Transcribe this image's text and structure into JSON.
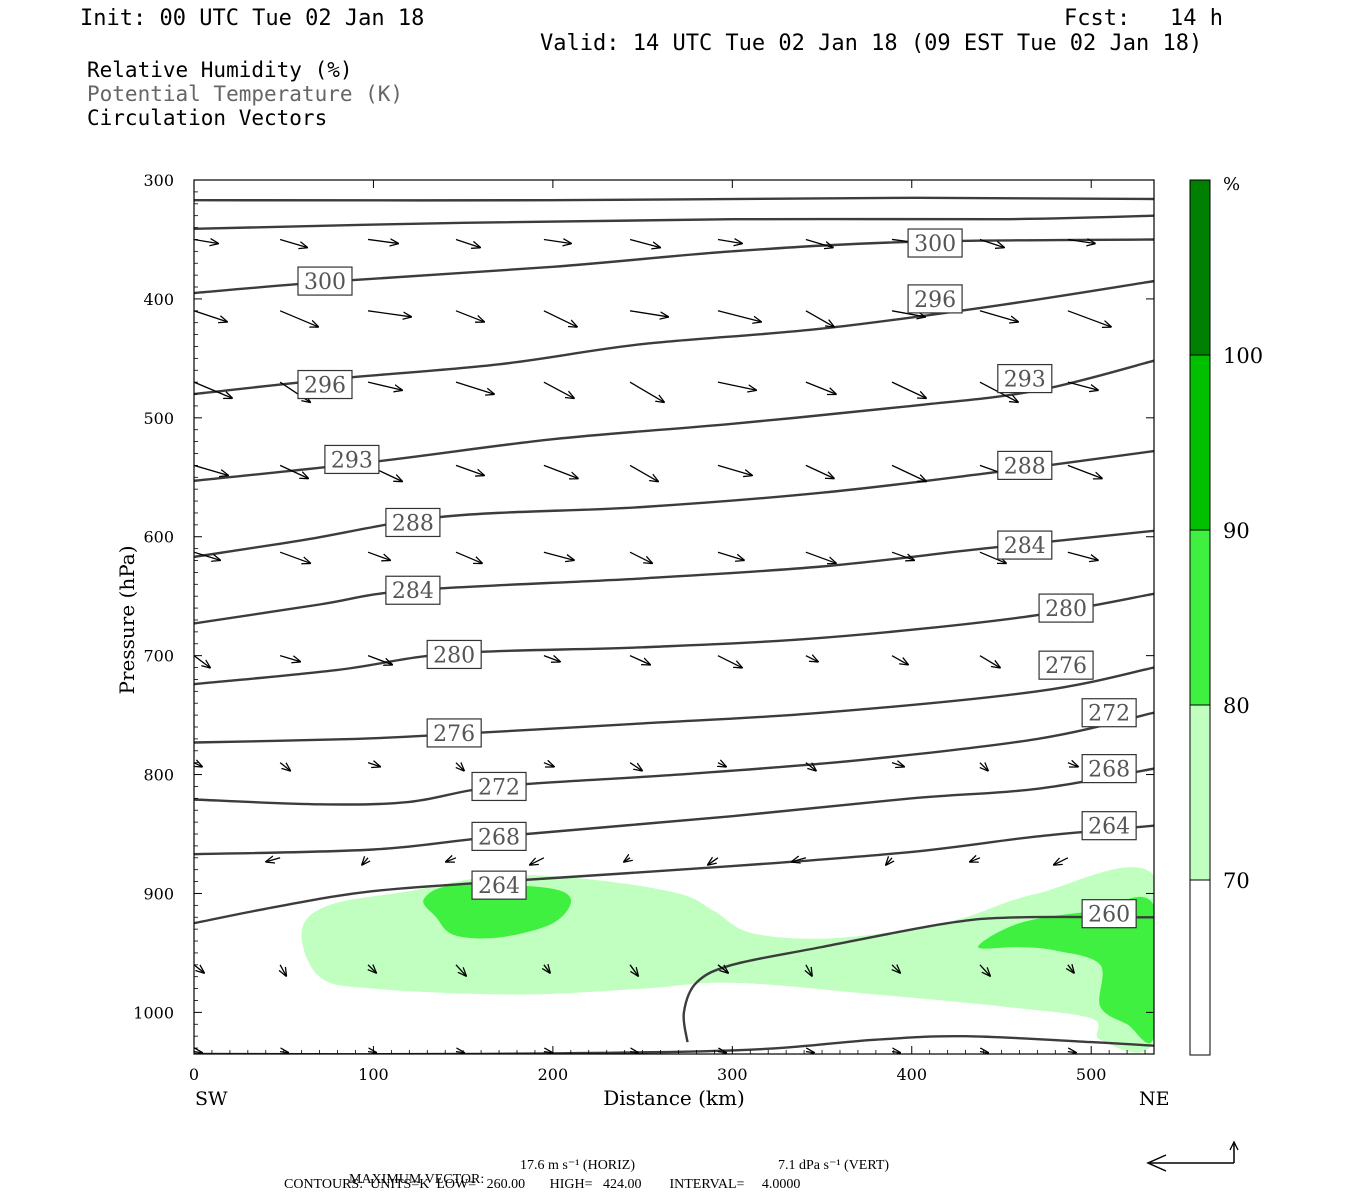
{
  "header": {
    "init": "Init: 00 UTC Tue 02 Jan 18",
    "fcst": "Fcst:   14 h",
    "valid": "Valid: 14 UTC Tue 02 Jan 18 (09 EST Tue 02 Jan 18)"
  },
  "legend": {
    "line1": "Relative Humidity (%)",
    "line2": "Potential Temperature (K)",
    "line3": "Circulation Vectors"
  },
  "colors": {
    "rh_70": "#c0ffc0",
    "rh_80": "#40f040",
    "rh_90": "#00c000",
    "rh_100": "#008000",
    "contour": "#3c3c3c",
    "label_text": "#555555"
  },
  "chart_data": {
    "type": "contour",
    "xlabel": "Distance (km)",
    "ylabel": "Pressure (hPa)",
    "x_left_label": "SW",
    "x_right_label": "NE",
    "xlim": [
      0,
      535
    ],
    "ylim": [
      1035,
      300
    ],
    "x_ticks": [
      0,
      100,
      200,
      300,
      400,
      500
    ],
    "y_ticks": [
      300,
      400,
      500,
      600,
      700,
      800,
      900,
      1000
    ],
    "colorbar": {
      "unit": "%",
      "levels": [
        70,
        80,
        90,
        100
      ],
      "tick_labels": [
        "70",
        "80",
        "90",
        "100"
      ]
    },
    "theta_contours": [
      {
        "label": "300",
        "points": [
          [
            0,
            317
          ],
          [
            200,
            317
          ],
          [
            400,
            315
          ],
          [
            535,
            316
          ]
        ],
        "labels_at": []
      },
      {
        "label": "300",
        "points": [
          [
            0,
            341
          ],
          [
            150,
            336
          ],
          [
            300,
            333
          ],
          [
            450,
            333
          ],
          [
            535,
            330
          ]
        ],
        "labels_at": []
      },
      {
        "label": "300",
        "points": [
          [
            0,
            395
          ],
          [
            80,
            385
          ],
          [
            200,
            373
          ],
          [
            300,
            360
          ],
          [
            400,
            352
          ],
          [
            535,
            350
          ]
        ],
        "labels_at": [
          [
            73,
            385
          ],
          [
            413,
            353
          ]
        ]
      },
      {
        "label": "296",
        "points": [
          [
            0,
            480
          ],
          [
            80,
            467
          ],
          [
            170,
            455
          ],
          [
            250,
            438
          ],
          [
            350,
            425
          ],
          [
            450,
            405
          ],
          [
            535,
            385
          ]
        ],
        "labels_at": [
          [
            73,
            472
          ],
          [
            413,
            400
          ]
        ]
      },
      {
        "label": "293",
        "points": [
          [
            0,
            553
          ],
          [
            100,
            537
          ],
          [
            200,
            518
          ],
          [
            300,
            505
          ],
          [
            400,
            490
          ],
          [
            470,
            477
          ],
          [
            535,
            452
          ]
        ],
        "labels_at": [
          [
            88,
            535
          ],
          [
            463,
            467
          ]
        ]
      },
      {
        "label": "288",
        "points": [
          [
            0,
            617
          ],
          [
            60,
            603
          ],
          [
            140,
            583
          ],
          [
            250,
            575
          ],
          [
            350,
            563
          ],
          [
            440,
            547
          ],
          [
            535,
            528
          ]
        ],
        "labels_at": [
          [
            122,
            588
          ],
          [
            463,
            540
          ]
        ]
      },
      {
        "label": "284",
        "points": [
          [
            0,
            673
          ],
          [
            70,
            657
          ],
          [
            122,
            645
          ],
          [
            250,
            635
          ],
          [
            350,
            625
          ],
          [
            440,
            610
          ],
          [
            535,
            595
          ]
        ],
        "labels_at": [
          [
            122,
            645
          ],
          [
            463,
            607
          ]
        ]
      },
      {
        "label": "280",
        "points": [
          [
            0,
            724
          ],
          [
            80,
            712
          ],
          [
            145,
            698
          ],
          [
            250,
            693
          ],
          [
            350,
            685
          ],
          [
            460,
            668
          ],
          [
            535,
            648
          ]
        ],
        "labels_at": [
          [
            145,
            699
          ],
          [
            486,
            660
          ]
        ]
      },
      {
        "label": "276",
        "points": [
          [
            0,
            773
          ],
          [
            90,
            770
          ],
          [
            145,
            766
          ],
          [
            250,
            757
          ],
          [
            350,
            748
          ],
          [
            470,
            730
          ],
          [
            535,
            710
          ]
        ],
        "labels_at": [
          [
            145,
            765
          ],
          [
            486,
            708
          ]
        ]
      },
      {
        "label": "272",
        "points": [
          [
            0,
            821
          ],
          [
            70,
            825
          ],
          [
            120,
            823
          ],
          [
            170,
            810
          ],
          [
            270,
            800
          ],
          [
            370,
            788
          ],
          [
            470,
            770
          ],
          [
            535,
            748
          ]
        ],
        "labels_at": [
          [
            170,
            810
          ],
          [
            510,
            748
          ]
        ]
      },
      {
        "label": "268",
        "points": [
          [
            0,
            867
          ],
          [
            100,
            863
          ],
          [
            170,
            852
          ],
          [
            300,
            835
          ],
          [
            400,
            820
          ],
          [
            470,
            812
          ],
          [
            535,
            795
          ]
        ],
        "labels_at": [
          [
            170,
            852
          ],
          [
            510,
            795
          ]
        ]
      },
      {
        "label": "264",
        "points": [
          [
            0,
            925
          ],
          [
            50,
            910
          ],
          [
            100,
            898
          ],
          [
            170,
            890
          ],
          [
            300,
            877
          ],
          [
            400,
            865
          ],
          [
            470,
            852
          ],
          [
            535,
            843
          ]
        ],
        "labels_at": [
          [
            170,
            893
          ],
          [
            510,
            843
          ]
        ]
      },
      {
        "label": "260",
        "points": [
          [
            275,
            1025
          ],
          [
            273,
            1000
          ],
          [
            280,
            975
          ],
          [
            300,
            960
          ],
          [
            350,
            945
          ],
          [
            420,
            925
          ],
          [
            460,
            920
          ],
          [
            520,
            920
          ],
          [
            535,
            920
          ]
        ],
        "labels_at": [
          [
            510,
            917
          ]
        ]
      },
      {
        "label": "",
        "points": [
          [
            0,
            1035
          ],
          [
            150,
            1035
          ],
          [
            300,
            1032
          ],
          [
            380,
            1023
          ],
          [
            430,
            1020
          ],
          [
            500,
            1025
          ],
          [
            535,
            1028
          ]
        ],
        "labels_at": []
      }
    ],
    "rh_regions": [
      {
        "level": 70,
        "points": [
          [
            60,
            932
          ],
          [
            75,
            910
          ],
          [
            120,
            898
          ],
          [
            170,
            885
          ],
          [
            220,
            888
          ],
          [
            270,
            900
          ],
          [
            290,
            915
          ],
          [
            310,
            933
          ],
          [
            350,
            938
          ],
          [
            400,
            930
          ],
          [
            430,
            920
          ],
          [
            470,
            900
          ],
          [
            535,
            885
          ],
          [
            535,
            1023
          ],
          [
            505,
            1023
          ],
          [
            500,
            1005
          ],
          [
            450,
            995
          ],
          [
            380,
            985
          ],
          [
            300,
            975
          ],
          [
            250,
            980
          ],
          [
            180,
            985
          ],
          [
            100,
            980
          ],
          [
            70,
            970
          ]
        ]
      },
      {
        "level": 80,
        "points": [
          [
            128,
            905
          ],
          [
            145,
            893
          ],
          [
            195,
            895
          ],
          [
            210,
            905
          ],
          [
            200,
            925
          ],
          [
            170,
            937
          ],
          [
            145,
            935
          ],
          [
            135,
            920
          ]
        ]
      },
      {
        "level": 80,
        "points": [
          [
            437,
            945
          ],
          [
            460,
            925
          ],
          [
            500,
            915
          ],
          [
            535,
            910
          ],
          [
            535,
            1020
          ],
          [
            520,
            1010
          ],
          [
            505,
            995
          ],
          [
            505,
            960
          ],
          [
            480,
            948
          ],
          [
            460,
            945
          ]
        ]
      }
    ],
    "vector_max": {
      "horizontal": "17.6 m s⁻¹ (HORIZ)",
      "vertical": "7.1 dPa s⁻¹ (VERT)"
    },
    "contour_info": "CONTOURS:  UNITS=K  LOW=   260.00       HIGH=   424.00        INTERVAL=     4.0000",
    "max_vector_label": "MAXIMUM VECTOR:"
  }
}
